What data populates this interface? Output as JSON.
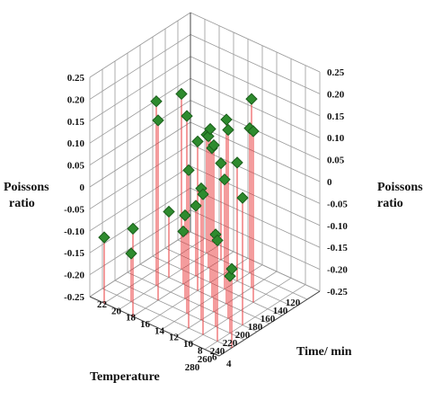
{
  "chart_data": {
    "type": "scatter",
    "variant": "3d-stem",
    "title": "",
    "xlabel": "Temperature",
    "ylabel": "Time/ min",
    "zlabel_left": "Poissons ratio",
    "zlabel_right": "Poissons ratio",
    "xlim": [
      120,
      280
    ],
    "ylim": [
      4,
      22
    ],
    "zlim": [
      -0.25,
      0.25
    ],
    "x_ticks": [
      "120",
      "140",
      "160",
      "180",
      "200",
      "220",
      "240",
      "260",
      "280"
    ],
    "y_ticks": [
      "4",
      "6",
      "8",
      "10",
      "12",
      "14",
      "16",
      "18",
      "20",
      "22"
    ],
    "z_ticks_left": [
      "0.25",
      "0.20",
      "0.15",
      "0.10",
      "0.05",
      "0",
      "-0.05",
      "-0.10",
      "-0.15",
      "-0.20",
      "-0.25"
    ],
    "z_ticks_right": [
      "0.25",
      "0.20",
      "0.15",
      "0.10",
      "0.05",
      "0",
      "-0.05",
      "-0.10",
      "-0.15",
      "-0.20",
      "-0.25"
    ],
    "grid": true,
    "marker": "diamond",
    "marker_color": "#2e8b2e",
    "stem_color": "#e8383b",
    "points": [
      {
        "x": 180,
        "y": 18,
        "z": 0.15
      },
      {
        "x": 220,
        "y": 18,
        "z": 0.17
      },
      {
        "x": 240,
        "y": 16,
        "z": 0.16
      },
      {
        "x": 200,
        "y": 14,
        "z": 0.09
      },
      {
        "x": 160,
        "y": 16,
        "z": 0.05
      },
      {
        "x": 180,
        "y": 14,
        "z": 0.1
      },
      {
        "x": 240,
        "y": 12,
        "z": 0.2
      },
      {
        "x": 260,
        "y": 10,
        "z": 0.11
      },
      {
        "x": 220,
        "y": 10,
        "z": 0.13
      },
      {
        "x": 200,
        "y": 10,
        "z": 0.17
      },
      {
        "x": 160,
        "y": 12,
        "z": 0.02
      },
      {
        "x": 140,
        "y": 18,
        "z": 0.02
      },
      {
        "x": 140,
        "y": 16,
        "z": -0.03
      },
      {
        "x": 200,
        "y": 18,
        "z": -0.1
      },
      {
        "x": 180,
        "y": 12,
        "z": 0.0
      },
      {
        "x": 260,
        "y": 6,
        "z": -0.02
      },
      {
        "x": 240,
        "y": 8,
        "z": -0.04
      },
      {
        "x": 220,
        "y": 6,
        "z": 0.04
      },
      {
        "x": 260,
        "y": 4,
        "z": -0.07
      },
      {
        "x": 220,
        "y": 14,
        "z": -0.06
      },
      {
        "x": 240,
        "y": 6,
        "z": -0.12
      },
      {
        "x": 200,
        "y": 16,
        "z": -0.13
      },
      {
        "x": 180,
        "y": 16,
        "z": -0.09
      },
      {
        "x": 140,
        "y": 12,
        "z": 0.08
      },
      {
        "x": 200,
        "y": 12,
        "z": 0.09
      },
      {
        "x": 260,
        "y": 8,
        "z": 0.07
      },
      {
        "x": 160,
        "y": 10,
        "z": 0.18
      },
      {
        "x": 220,
        "y": 8,
        "z": 0.18
      },
      {
        "x": 180,
        "y": 8,
        "z": 0.14
      },
      {
        "x": 240,
        "y": 10,
        "z": 0.05
      },
      {
        "x": 280,
        "y": 20,
        "z": -0.1
      },
      {
        "x": 280,
        "y": 16,
        "z": -0.05
      },
      {
        "x": 260,
        "y": 18,
        "z": -0.14
      }
    ]
  }
}
